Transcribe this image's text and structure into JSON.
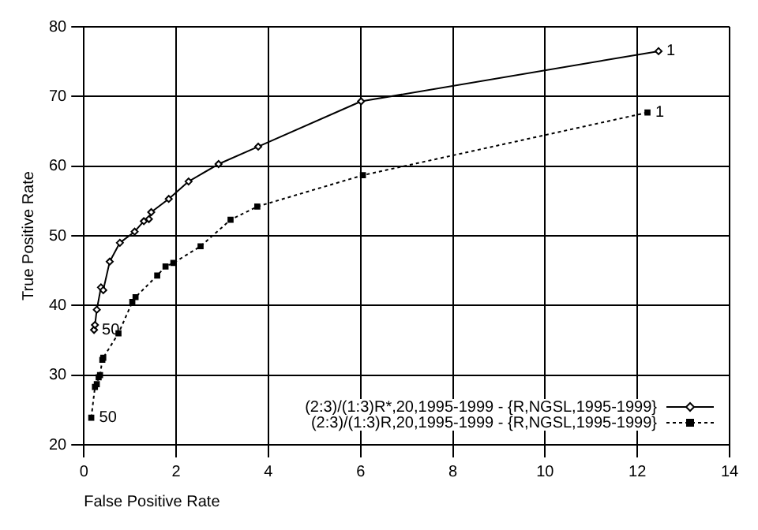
{
  "chart_data": {
    "type": "line",
    "xlabel": "False Positive Rate",
    "ylabel": "True Positive Rate",
    "xlim": [
      0,
      14
    ],
    "xticks": [
      0,
      2,
      4,
      6,
      8,
      10,
      12,
      14
    ],
    "ylim": [
      20,
      80
    ],
    "yticks": [
      20,
      30,
      40,
      50,
      60,
      70,
      80
    ],
    "grid": true,
    "legend": "bottom right",
    "series": [
      {
        "name": "(2:3)/(1:3)R*,20,1995-1999 - {R,NGSL,1995-1999}",
        "color": "#000000",
        "marker": "diamond",
        "line_style": "solid",
        "x": [
          0.22,
          0.24,
          0.28,
          0.37,
          0.42,
          0.56,
          0.78,
          1.1,
          1.3,
          1.41,
          1.46,
          1.84,
          2.27,
          2.92,
          3.78,
          6.01,
          12.46
        ],
        "values": [
          36.5,
          37.2,
          39.4,
          42.6,
          42.2,
          46.3,
          49.0,
          50.6,
          52.1,
          52.4,
          53.4,
          55.3,
          57.8,
          60.3,
          62.8,
          69.3,
          76.5
        ]
      },
      {
        "name": "(2:3)/(1:3)R,20,1995-1999 - {R,NGSL,1995-1999}",
        "color": "#000000",
        "marker": "square",
        "line_style": "dotted",
        "x": [
          0.16,
          0.24,
          0.28,
          0.32,
          0.35,
          0.4,
          0.42,
          0.75,
          1.05,
          1.12,
          1.59,
          1.77,
          1.94,
          2.53,
          3.18,
          3.76,
          6.05,
          12.22
        ],
        "values": [
          23.9,
          28.3,
          28.7,
          29.7,
          30.0,
          32.2,
          32.5,
          36.0,
          40.5,
          41.2,
          44.3,
          45.6,
          46.1,
          48.5,
          52.3,
          54.2,
          58.7,
          67.7
        ]
      }
    ],
    "annotations": [
      {
        "text": "50",
        "x": 0.22,
        "y": 36.5
      },
      {
        "text": "1",
        "x": 12.46,
        "y": 76.5
      },
      {
        "text": "50",
        "x": 0.16,
        "y": 23.9
      },
      {
        "text": "1",
        "x": 12.22,
        "y": 67.7
      }
    ]
  }
}
